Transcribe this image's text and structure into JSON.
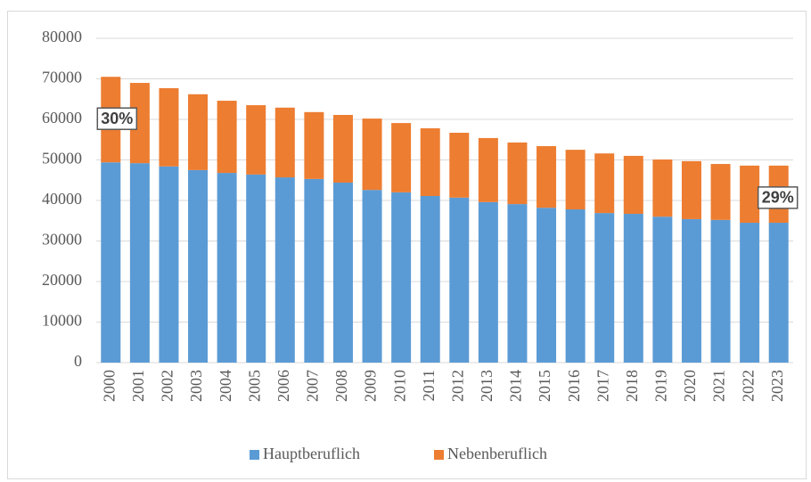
{
  "chart_data": {
    "type": "stacked_bar",
    "categories": [
      "2000",
      "2001",
      "2002",
      "2003",
      "2004",
      "2005",
      "2006",
      "2007",
      "2008",
      "2009",
      "2010",
      "2011",
      "2012",
      "2013",
      "2014",
      "2015",
      "2016",
      "2017",
      "2018",
      "2019",
      "2020",
      "2021",
      "2022",
      "2023"
    ],
    "series": [
      {
        "name": "Hauptberuflich",
        "color": "#5b9bd5",
        "values": [
          49400,
          49200,
          48400,
          47500,
          46800,
          46400,
          45700,
          45300,
          44400,
          42600,
          42000,
          41100,
          40700,
          39600,
          39100,
          38200,
          37800,
          36900,
          36700,
          36000,
          35400,
          35200,
          34500,
          34500
        ]
      },
      {
        "name": "Nebenberuflich",
        "color": "#ed7d31",
        "values": [
          21100,
          19800,
          19300,
          18700,
          17800,
          17100,
          17200,
          16500,
          16700,
          17600,
          17100,
          16700,
          16000,
          15800,
          15200,
          15200,
          14700,
          14700,
          14300,
          14100,
          14300,
          13800,
          14100,
          14100
        ]
      }
    ],
    "ylim": [
      0,
      80000
    ],
    "yticks": [
      0,
      10000,
      20000,
      30000,
      40000,
      50000,
      60000,
      70000,
      80000
    ],
    "grid": true,
    "legend": "bottom",
    "annotations": [
      {
        "text": "30%",
        "category": 0
      },
      {
        "text": "29%",
        "category": 23
      }
    ]
  }
}
